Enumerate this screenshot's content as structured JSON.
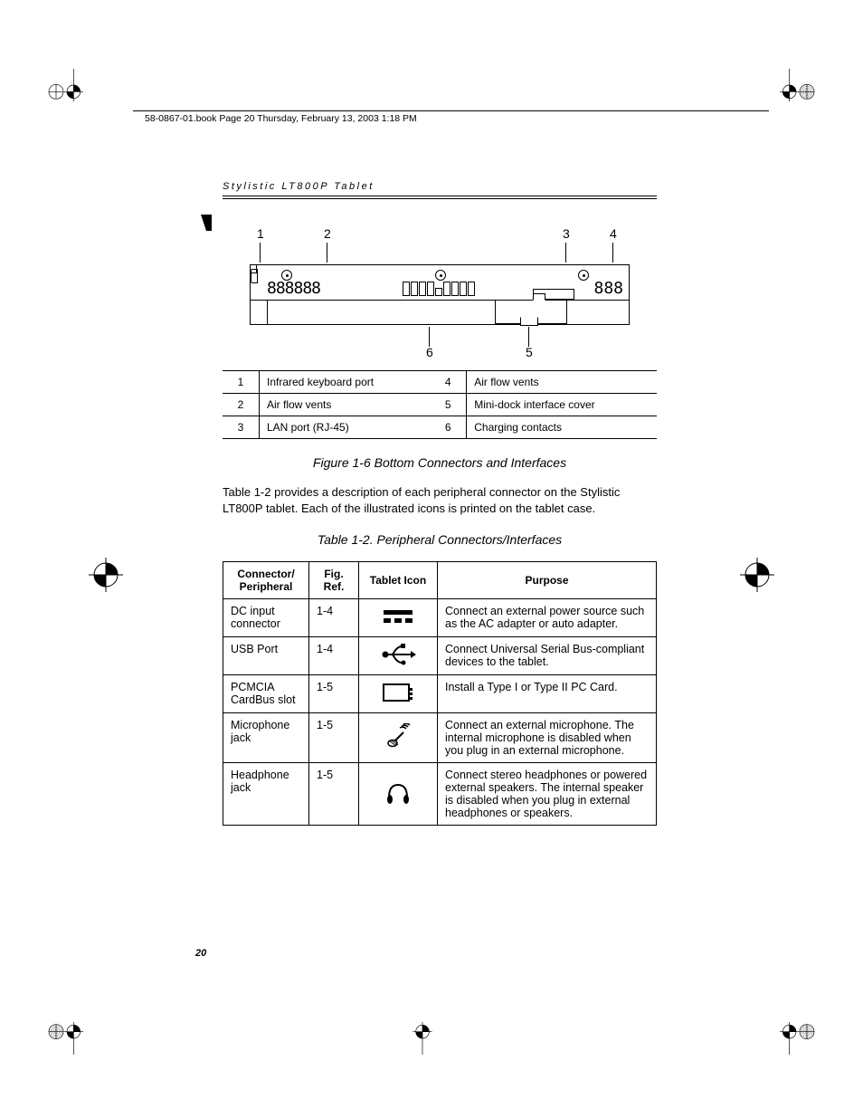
{
  "header_strip": "58-0867-01.book  Page 20  Thursday, February 13, 2003  1:18 PM",
  "chapter_title": "Stylistic LT800P Tablet",
  "diagram": {
    "top_labels": [
      "1",
      "2",
      "3",
      "4"
    ],
    "bottom_labels": [
      "6",
      "5"
    ]
  },
  "legend": {
    "rows": [
      {
        "n1": "1",
        "t1": "Infrared keyboard port",
        "n2": "4",
        "t2": "Air flow vents"
      },
      {
        "n1": "2",
        "t1": "Air flow vents",
        "n2": "5",
        "t2": "Mini-dock interface cover"
      },
      {
        "n1": "3",
        "t1": "LAN port (RJ-45)",
        "n2": "6",
        "t2": "Charging contacts"
      }
    ]
  },
  "figure_caption": "Figure 1-6  Bottom Connectors and Interfaces",
  "body_paragraph": "Table 1-2 provides a description of each peripheral connector on the Stylistic LT800P tablet. Each of the illustrated icons is printed on the tablet case.",
  "table_caption": "Table 1-2.   Peripheral Connectors/Interfaces",
  "table": {
    "headers": [
      "Connector/\nPeripheral",
      "Fig.\nRef.",
      "Tablet Icon",
      "Purpose"
    ],
    "rows": [
      {
        "c": "DC input connector",
        "r": "1-4",
        "icon": "dc",
        "p": "Connect an external power source such as the AC adapter or auto adapter."
      },
      {
        "c": "USB Port",
        "r": "1-4",
        "icon": "usb",
        "p": "Connect Universal Serial Bus-compliant devices to the tablet."
      },
      {
        "c": "PCMCIA CardBus slot",
        "r": "1-5",
        "icon": "pcmcia",
        "p": "Install a Type I or Type II PC Card."
      },
      {
        "c": "Microphone jack",
        "r": "1-5",
        "icon": "mic",
        "p": "Connect an external microphone. The internal microphone is disabled when you plug in an external microphone."
      },
      {
        "c": "Headphone jack",
        "r": "1-5",
        "icon": "headphone",
        "p": "Connect stereo headphones or powered external speakers. The internal speaker is disabled when you plug in external headphones or speakers."
      }
    ]
  },
  "page_number": "20"
}
